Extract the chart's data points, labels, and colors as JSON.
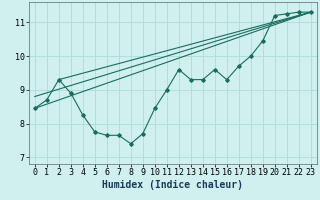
{
  "background_color": "#cff0ee",
  "grid_color": "#aaddda",
  "line_color": "#1a6b60",
  "xlabel": "Humidex (Indice chaleur)",
  "xlabel_fontsize": 7,
  "tick_fontsize": 6,
  "xlim": [
    -0.5,
    23.5
  ],
  "ylim": [
    6.8,
    11.6
  ],
  "yticks": [
    7,
    8,
    9,
    10,
    11
  ],
  "xticks": [
    0,
    1,
    2,
    3,
    4,
    5,
    6,
    7,
    8,
    9,
    10,
    11,
    12,
    13,
    14,
    15,
    16,
    17,
    18,
    19,
    20,
    21,
    22,
    23
  ],
  "data_line": {
    "x": [
      0,
      1,
      2,
      3,
      4,
      5,
      6,
      7,
      8,
      9,
      10,
      11,
      12,
      13,
      14,
      15,
      16,
      17,
      18,
      19,
      20,
      21,
      22,
      23
    ],
    "y": [
      8.45,
      8.7,
      9.3,
      8.9,
      8.25,
      7.75,
      7.65,
      7.65,
      7.4,
      7.7,
      8.45,
      9.0,
      9.6,
      9.3,
      9.3,
      9.6,
      9.3,
      9.7,
      10.0,
      10.45,
      11.2,
      11.25,
      11.3,
      11.3
    ]
  },
  "line1": {
    "x": [
      0,
      23
    ],
    "y": [
      8.45,
      11.3
    ]
  },
  "line2": {
    "x": [
      0,
      23
    ],
    "y": [
      8.8,
      11.3
    ]
  },
  "line3": {
    "x": [
      2,
      23
    ],
    "y": [
      9.3,
      11.3
    ]
  }
}
